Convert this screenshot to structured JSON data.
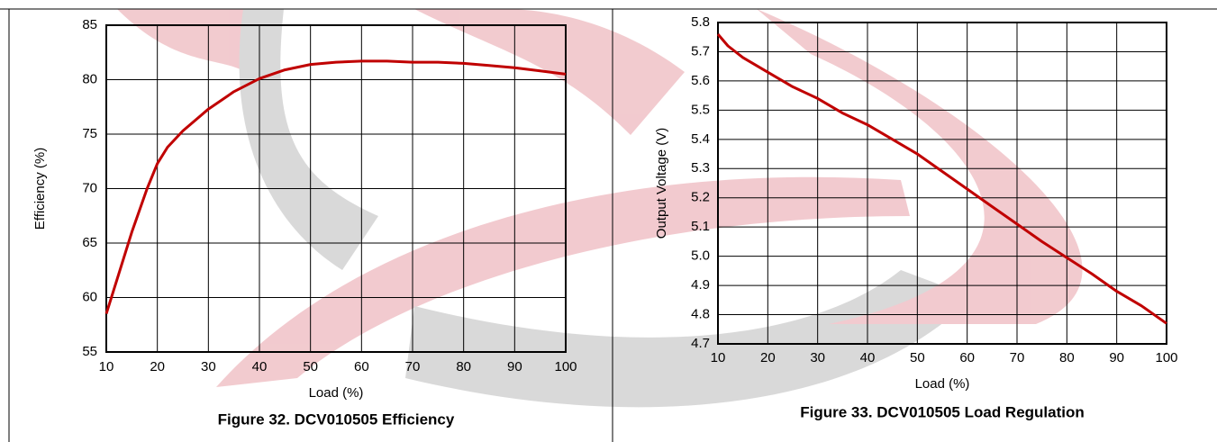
{
  "chart_data": [
    {
      "type": "line",
      "title": "Figure 32. DCV010505 Efficiency",
      "xlabel": "Load (%)",
      "ylabel": "Efficiency (%)",
      "x": [
        10,
        12,
        15,
        18,
        20,
        22,
        25,
        30,
        35,
        40,
        45,
        50,
        55,
        60,
        65,
        70,
        75,
        80,
        85,
        90,
        95,
        100
      ],
      "values": [
        58.5,
        61.5,
        66,
        70,
        72.3,
        73.8,
        75.3,
        77.3,
        78.9,
        80.1,
        80.9,
        81.4,
        81.6,
        81.7,
        81.7,
        81.6,
        81.6,
        81.5,
        81.3,
        81.1,
        80.8,
        80.5
      ],
      "color": "#c00000",
      "xlim": [
        10,
        100
      ],
      "xticks": [
        10,
        20,
        30,
        40,
        50,
        60,
        70,
        80,
        90,
        100
      ],
      "ylim": [
        55,
        85
      ],
      "yticks": [
        55,
        60,
        65,
        70,
        75,
        80,
        85
      ],
      "grid": true
    },
    {
      "type": "line",
      "title": "Figure 33. DCV010505 Load Regulation",
      "xlabel": "Load (%)",
      "ylabel": "Output Voltage (V)",
      "x": [
        10,
        12,
        15,
        20,
        25,
        30,
        35,
        40,
        45,
        50,
        55,
        60,
        65,
        70,
        75,
        80,
        85,
        90,
        95,
        100
      ],
      "values": [
        5.76,
        5.72,
        5.68,
        5.63,
        5.58,
        5.54,
        5.49,
        5.45,
        5.4,
        5.35,
        5.29,
        5.23,
        5.17,
        5.11,
        5.05,
        4.995,
        4.94,
        4.88,
        4.83,
        4.77
      ],
      "color": "#c00000",
      "xlim": [
        10,
        100
      ],
      "xticks": [
        10,
        20,
        30,
        40,
        50,
        60,
        70,
        80,
        90,
        100
      ],
      "ylim": [
        4.7,
        5.8
      ],
      "yticks": [
        4.7,
        4.8,
        4.9,
        {
          "value": 5,
          "label": "5.0"
        },
        5.1,
        5.2,
        5.3,
        5.4,
        5.5,
        5.6,
        5.7,
        5.8
      ],
      "grid": true
    }
  ]
}
